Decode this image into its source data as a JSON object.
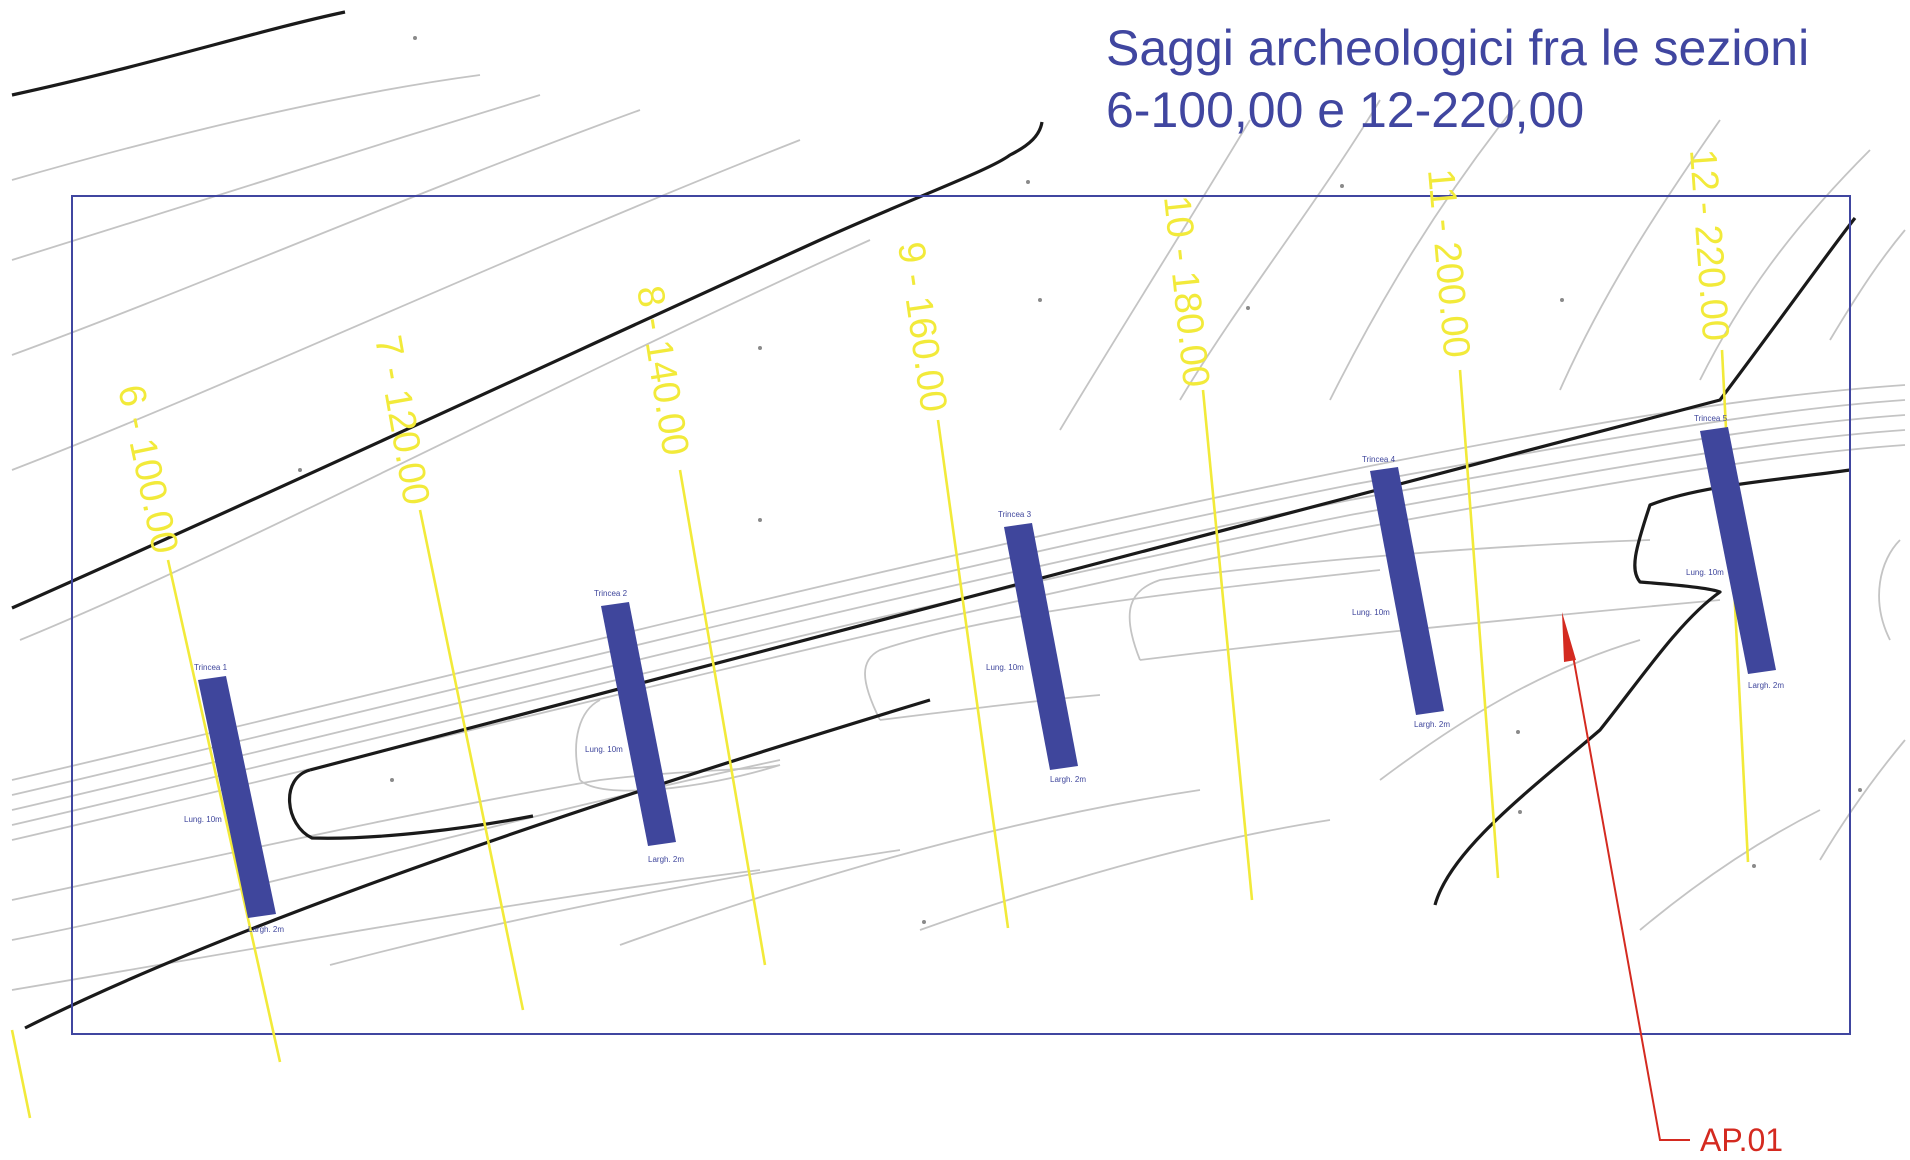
{
  "title": {
    "line1": "Saggi archeologici fra le sezioni",
    "line2": "6-100,00 e 12-220,00"
  },
  "sections": [
    {
      "label": "6 - 100.00"
    },
    {
      "label": "7 - 120.00"
    },
    {
      "label": "8 - 140.00"
    },
    {
      "label": "9 - 160.00"
    },
    {
      "label": "10 - 180.00"
    },
    {
      "label": "11 - 200.00"
    },
    {
      "label": "12 - 220.00"
    }
  ],
  "trenches": [
    {
      "name": "Trincea 1",
      "length": "Lung. 10m",
      "width": "Largh. 2m"
    },
    {
      "name": "Trincea 2",
      "length": "Lung. 10m",
      "width": "Largh. 2m"
    },
    {
      "name": "Trincea 3",
      "length": "Lung. 10m",
      "width": "Largh. 2m"
    },
    {
      "name": "Trincea 4",
      "length": "Lung. 10m",
      "width": "Largh. 2m"
    },
    {
      "name": "Trincea 5",
      "length": "Lung. 10m",
      "width": "Largh. 2m"
    }
  ],
  "callout": {
    "label": "AP.01"
  },
  "colors": {
    "section": "#f2ea3a",
    "trench": "#3f469c",
    "frame": "#4046a0",
    "callout": "#d42a20",
    "contour": "#c4c4c4",
    "terrain_edge": "#1a1a1a"
  }
}
